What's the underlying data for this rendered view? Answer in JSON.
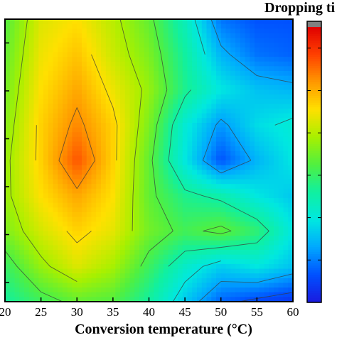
{
  "chart_data": {
    "type": "heatmap",
    "title": "",
    "xlabel": "Conversion temperature (°C)",
    "ylabel": "",
    "colorbar_title": "Dropping ti",
    "x_ticks": [
      "20",
      "25",
      "30",
      "35",
      "40",
      "45",
      "50",
      "55",
      "60"
    ],
    "x_range": [
      20,
      60
    ],
    "y_range": [
      0,
      1
    ],
    "z_range": [
      0,
      1
    ],
    "colormap": [
      "#1a1adf",
      "#0050ff",
      "#00a8ff",
      "#00e8e0",
      "#10f0a0",
      "#50f040",
      "#a8f000",
      "#ffe000",
      "#ff9800",
      "#ff4000",
      "#e00000",
      "#808080"
    ],
    "grid": false,
    "x": [
      20,
      25,
      30,
      35,
      40,
      45,
      50,
      55,
      60
    ],
    "y": [
      0.0,
      0.125,
      0.25,
      0.375,
      0.5,
      0.625,
      0.75,
      0.875,
      1.0
    ],
    "z": [
      [
        0.4,
        0.47,
        0.52,
        0.5,
        0.4,
        0.25,
        0.12,
        0.08,
        0.05
      ],
      [
        0.46,
        0.58,
        0.66,
        0.6,
        0.47,
        0.34,
        0.26,
        0.3,
        0.24
      ],
      [
        0.55,
        0.65,
        0.72,
        0.67,
        0.54,
        0.48,
        0.52,
        0.45,
        0.3
      ],
      [
        0.58,
        0.7,
        0.78,
        0.7,
        0.52,
        0.42,
        0.38,
        0.3,
        0.25
      ],
      [
        0.58,
        0.72,
        0.88,
        0.72,
        0.52,
        0.3,
        0.1,
        0.22,
        0.3
      ],
      [
        0.56,
        0.72,
        0.82,
        0.72,
        0.55,
        0.32,
        0.18,
        0.28,
        0.32
      ],
      [
        0.54,
        0.7,
        0.78,
        0.68,
        0.58,
        0.42,
        0.3,
        0.24,
        0.22
      ],
      [
        0.52,
        0.68,
        0.74,
        0.64,
        0.55,
        0.4,
        0.22,
        0.14,
        0.12
      ],
      [
        0.5,
        0.66,
        0.7,
        0.62,
        0.52,
        0.36,
        0.14,
        0.1,
        0.1
      ]
    ],
    "contour_levels": [
      0.1,
      0.2,
      0.3,
      0.4,
      0.5,
      0.6,
      0.7,
      0.8
    ]
  }
}
